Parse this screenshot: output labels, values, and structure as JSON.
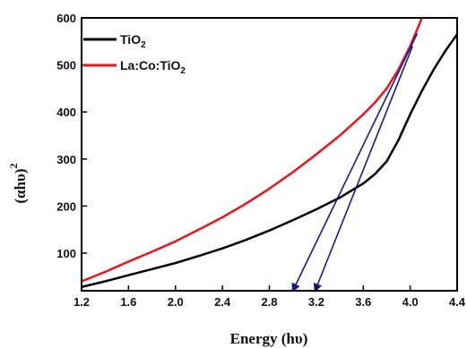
{
  "chart_data": {
    "type": "line",
    "xlabel": "Energy (hυ)",
    "ylabel": "(αhυ)",
    "ylabel_sup": "2",
    "xlim": [
      1.2,
      4.4
    ],
    "ylim": [
      20,
      600
    ],
    "x_ticks": [
      1.2,
      1.6,
      2.0,
      2.4,
      2.8,
      3.2,
      3.6,
      4.0,
      4.4
    ],
    "x_tick_labels": [
      "1.2",
      "1.6",
      "2.0",
      "2.4",
      "2.8",
      "3.2",
      "3.6",
      "4.0",
      "4.4"
    ],
    "y_ticks": [
      100,
      200,
      300,
      400,
      500,
      600
    ],
    "y_tick_labels": [
      "100",
      "200",
      "300",
      "400",
      "500",
      "600"
    ],
    "grid": false,
    "legend_position": "top-left",
    "series": [
      {
        "name": "TiO",
        "name_sub": "2",
        "color": "#000000",
        "x": [
          1.2,
          1.4,
          1.6,
          1.8,
          2.0,
          2.2,
          2.4,
          2.6,
          2.8,
          3.0,
          3.2,
          3.4,
          3.6,
          3.7,
          3.8,
          3.9,
          4.0,
          4.1,
          4.2,
          4.3,
          4.4
        ],
        "y": [
          28,
          40,
          53,
          66,
          79,
          94,
          110,
          128,
          148,
          170,
          193,
          218,
          248,
          268,
          295,
          340,
          395,
          445,
          490,
          530,
          565
        ]
      },
      {
        "name": "La:Co:TiO",
        "name_sub": "2",
        "color": "#e8141b",
        "x": [
          1.2,
          1.4,
          1.6,
          1.8,
          2.0,
          2.2,
          2.4,
          2.6,
          2.8,
          3.0,
          3.2,
          3.4,
          3.6,
          3.7,
          3.8,
          3.9,
          4.0,
          4.05,
          4.1,
          4.12
        ],
        "y": [
          40,
          60,
          82,
          103,
          125,
          150,
          176,
          205,
          237,
          272,
          310,
          350,
          395,
          420,
          450,
          490,
          540,
          570,
          600,
          612
        ]
      }
    ],
    "annotations": [
      {
        "type": "arrow",
        "color": "#1a1a8c",
        "from": [
          4.06,
          567
        ],
        "to": [
          3.0,
          20
        ]
      },
      {
        "type": "arrow",
        "color": "#1a1a8c",
        "from": [
          4.02,
          540
        ],
        "to": [
          3.19,
          20
        ]
      }
    ]
  }
}
